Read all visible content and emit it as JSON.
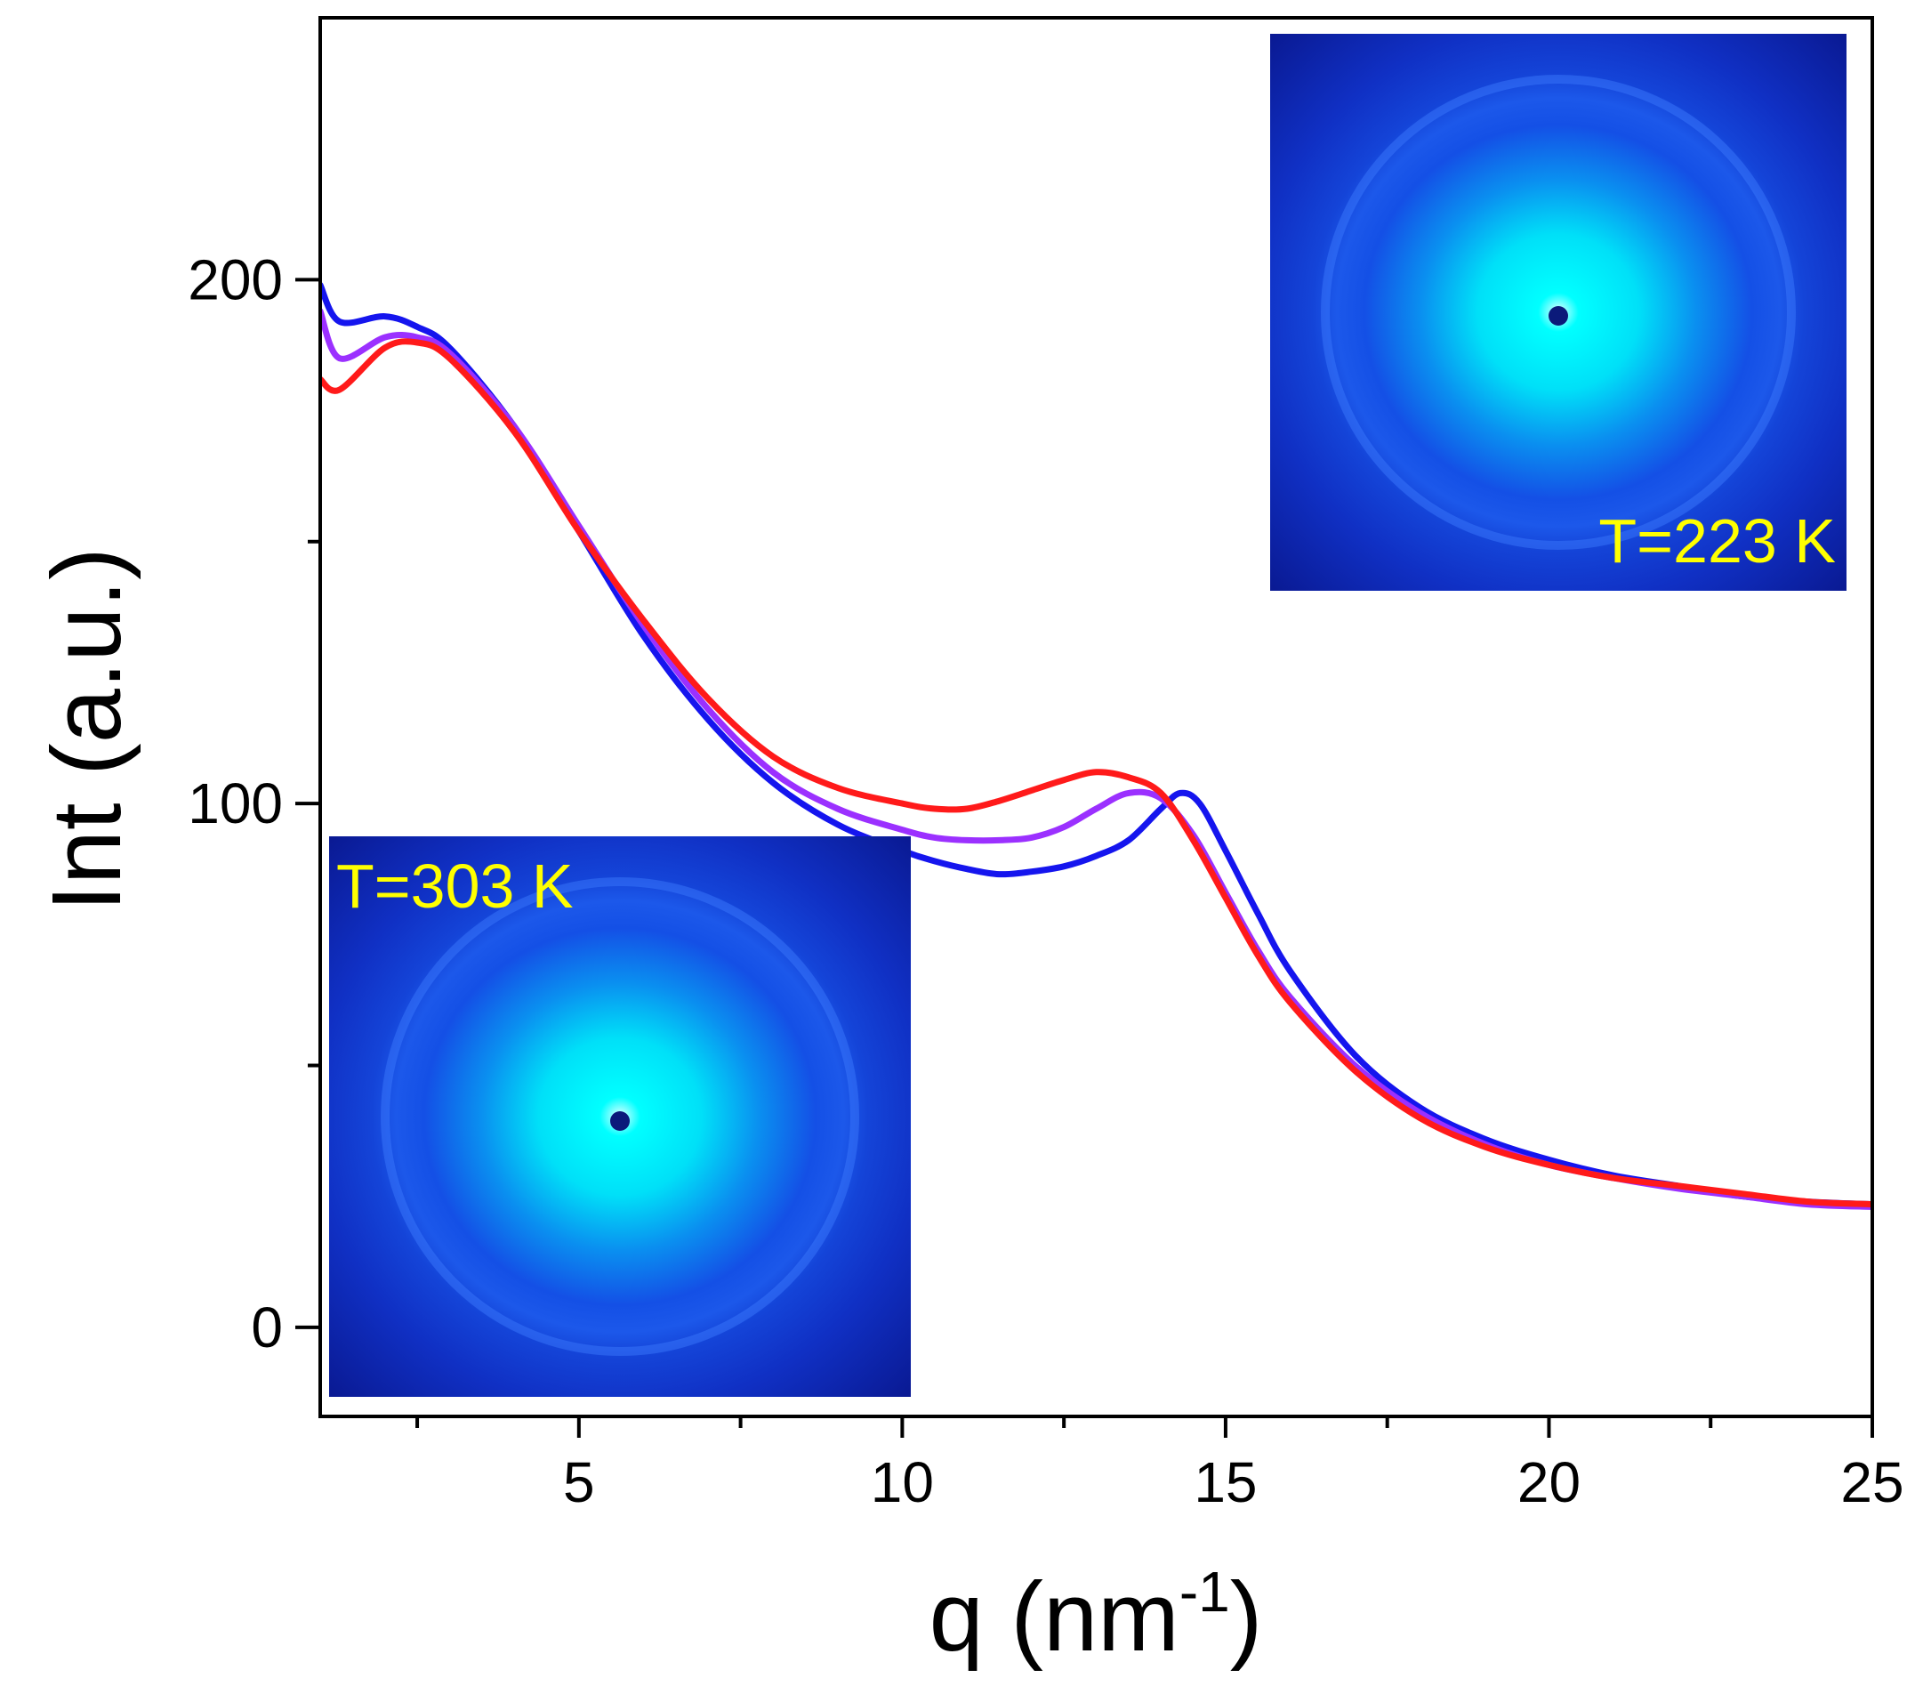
{
  "chart_data": {
    "type": "line",
    "title": "",
    "xlabel": "q (nm",
    "xlabel_sup": "-1",
    "xlabel_close": ")",
    "ylabel": "Int (a.u.)",
    "xlim": [
      1,
      25
    ],
    "ylim": [
      -17,
      250
    ],
    "x_ticks": [
      5,
      10,
      15,
      20,
      25
    ],
    "x_tick_labels": [
      "5",
      "10",
      "15",
      "20",
      "25"
    ],
    "x_minor_ticks": [
      2.5,
      7.5,
      12.5,
      17.5,
      22.5
    ],
    "y_ticks": [
      0,
      100,
      200
    ],
    "y_tick_labels": [
      "0",
      "100",
      "200"
    ],
    "y_minor_ticks": [
      50,
      150
    ],
    "grid": false,
    "legend": "none",
    "series": [
      {
        "name": "blue",
        "color": "#1515ee",
        "x": [
          1,
          1.3,
          2,
          2.5,
          3,
          4,
          5,
          6,
          7,
          8,
          9,
          10,
          10.5,
          11,
          11.5,
          12,
          12.5,
          13,
          13.5,
          14,
          14.3,
          14.6,
          15,
          15.5,
          16,
          17,
          18,
          19,
          20,
          21,
          22,
          23,
          24,
          25
        ],
        "y": [
          199,
          192,
          193,
          191,
          187,
          172,
          152,
          132,
          116,
          104,
          96,
          91,
          89,
          87.5,
          86.5,
          87,
          88,
          90,
          93,
          99,
          102,
          100,
          91,
          79,
          68,
          52,
          42,
          36,
          32,
          29,
          27,
          25,
          24,
          23.5
        ]
      },
      {
        "name": "purple",
        "color": "#9b30ff",
        "x": [
          1,
          1.3,
          2,
          2.5,
          3,
          4,
          5,
          6,
          7,
          8,
          9,
          10,
          10.5,
          11,
          11.5,
          12,
          12.5,
          13,
          13.5,
          14,
          14.5,
          15,
          15.5,
          16,
          17,
          18,
          19,
          20,
          21,
          22,
          23,
          24,
          25
        ],
        "y": [
          194,
          185,
          189,
          189,
          186,
          172,
          153,
          134,
          118,
          106,
          99,
          95,
          93.5,
          93,
          93,
          93.5,
          95.5,
          99,
          102,
          101,
          94,
          83,
          72,
          63,
          50,
          41,
          35,
          31,
          28.5,
          26.5,
          25,
          23.5,
          23
        ]
      },
      {
        "name": "red",
        "color": "#ff1a1a",
        "x": [
          1,
          1.3,
          2,
          2.5,
          3,
          4,
          5,
          6,
          7,
          8,
          9,
          10,
          10.5,
          11,
          11.5,
          12,
          12.5,
          13,
          13.5,
          14,
          14.5,
          15,
          15.5,
          16,
          17,
          18,
          19,
          20,
          21,
          22,
          23,
          24,
          25
        ],
        "y": [
          181,
          179,
          187,
          188,
          185,
          171,
          152,
          135,
          120,
          109,
          103,
          100,
          99,
          99,
          100.5,
          102.5,
          104.5,
          106,
          105,
          102,
          93,
          82,
          71,
          62,
          49,
          40,
          34.5,
          31,
          28.5,
          27,
          25.5,
          24,
          23.5
        ]
      }
    ],
    "insets": [
      {
        "name": "inset-223k",
        "label": "T=223 K"
      },
      {
        "name": "inset-303k",
        "label": "T=303 K"
      }
    ]
  }
}
